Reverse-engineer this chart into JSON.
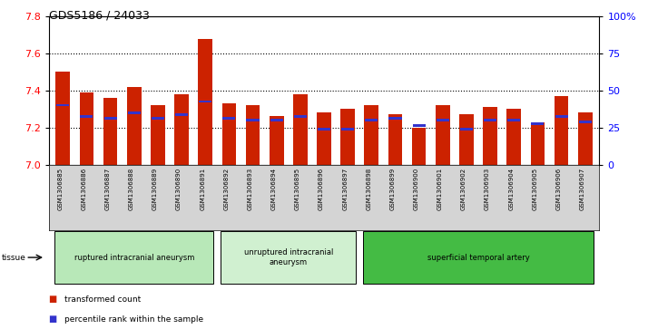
{
  "title": "GDS5186 / 24033",
  "samples": [
    "GSM1306885",
    "GSM1306886",
    "GSM1306887",
    "GSM1306888",
    "GSM1306889",
    "GSM1306890",
    "GSM1306891",
    "GSM1306892",
    "GSM1306893",
    "GSM1306894",
    "GSM1306895",
    "GSM1306896",
    "GSM1306897",
    "GSM1306898",
    "GSM1306899",
    "GSM1306900",
    "GSM1306901",
    "GSM1306902",
    "GSM1306903",
    "GSM1306904",
    "GSM1306905",
    "GSM1306906",
    "GSM1306907"
  ],
  "bar_values": [
    7.5,
    7.39,
    7.36,
    7.42,
    7.32,
    7.38,
    7.68,
    7.33,
    7.32,
    7.26,
    7.38,
    7.28,
    7.3,
    7.32,
    7.27,
    7.2,
    7.32,
    7.27,
    7.31,
    7.3,
    7.23,
    7.37,
    7.28
  ],
  "blue_values": [
    7.32,
    7.26,
    7.25,
    7.28,
    7.25,
    7.27,
    7.34,
    7.25,
    7.24,
    7.24,
    7.26,
    7.19,
    7.19,
    7.24,
    7.25,
    7.21,
    7.24,
    7.19,
    7.24,
    7.24,
    7.22,
    7.26,
    7.23
  ],
  "ymin": 7.0,
  "ymax": 7.8,
  "yticks_left": [
    7.0,
    7.2,
    7.4,
    7.6,
    7.8
  ],
  "yticks_right_labels": [
    "0",
    "25",
    "50",
    "75",
    "100%"
  ],
  "bar_color": "#cc2200",
  "blue_color": "#3333cc",
  "plot_bg": "#ffffff",
  "sample_bg": "#d4d4d4",
  "groups": [
    {
      "label": "ruptured intracranial aneurysm",
      "start": 0,
      "end": 6,
      "color": "#b8e8b8"
    },
    {
      "label": "unruptured intracranial\naneurysm",
      "start": 7,
      "end": 12,
      "color": "#d0f0d0"
    },
    {
      "label": "superficial temporal artery",
      "start": 13,
      "end": 22,
      "color": "#44bb44"
    }
  ],
  "tissue_label": "tissue",
  "legend_items": [
    {
      "label": "transformed count",
      "color": "#cc2200"
    },
    {
      "label": "percentile rank within the sample",
      "color": "#3333cc"
    }
  ],
  "bar_width": 0.6
}
